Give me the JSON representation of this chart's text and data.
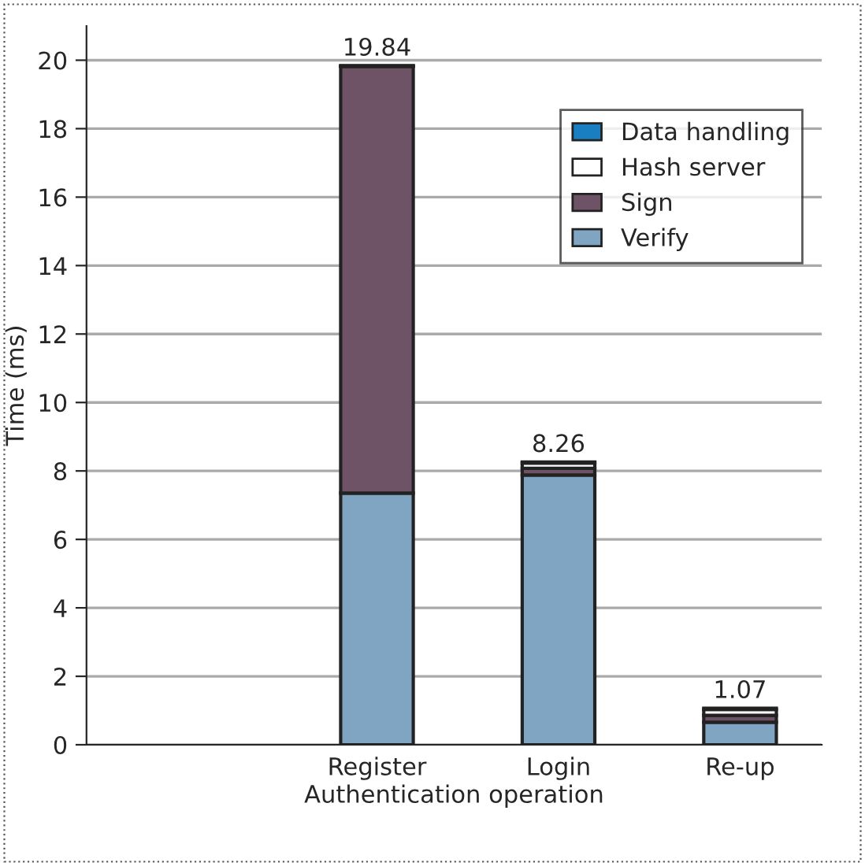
{
  "chart_data": {
    "type": "bar",
    "stacked": true,
    "xlabel": "Authentication operation",
    "ylabel": "Time (ms)",
    "categories": [
      null,
      "Register",
      "Login",
      "Re-up"
    ],
    "series": [
      {
        "name": "Verify",
        "color": "#7fa5c2",
        "values": [
          null,
          7.35,
          7.88,
          0.66
        ]
      },
      {
        "name": "Sign",
        "color": "#6e5366",
        "values": [
          null,
          12.47,
          0.2,
          0.2
        ]
      },
      {
        "name": "Hash server",
        "color": "#ffffff",
        "values": [
          null,
          0.01,
          0.15,
          0.17
        ]
      },
      {
        "name": "Data handling",
        "color": "#1a7fc0",
        "values": [
          null,
          0.01,
          0.03,
          0.04
        ]
      }
    ],
    "totals": [
      null,
      "19.84",
      "8.26",
      "1.07"
    ],
    "ylim": [
      0,
      21
    ],
    "yticks": [
      0,
      2,
      4,
      6,
      8,
      10,
      12,
      14,
      16,
      18,
      20
    ],
    "grid": "y",
    "legend": "top right"
  }
}
